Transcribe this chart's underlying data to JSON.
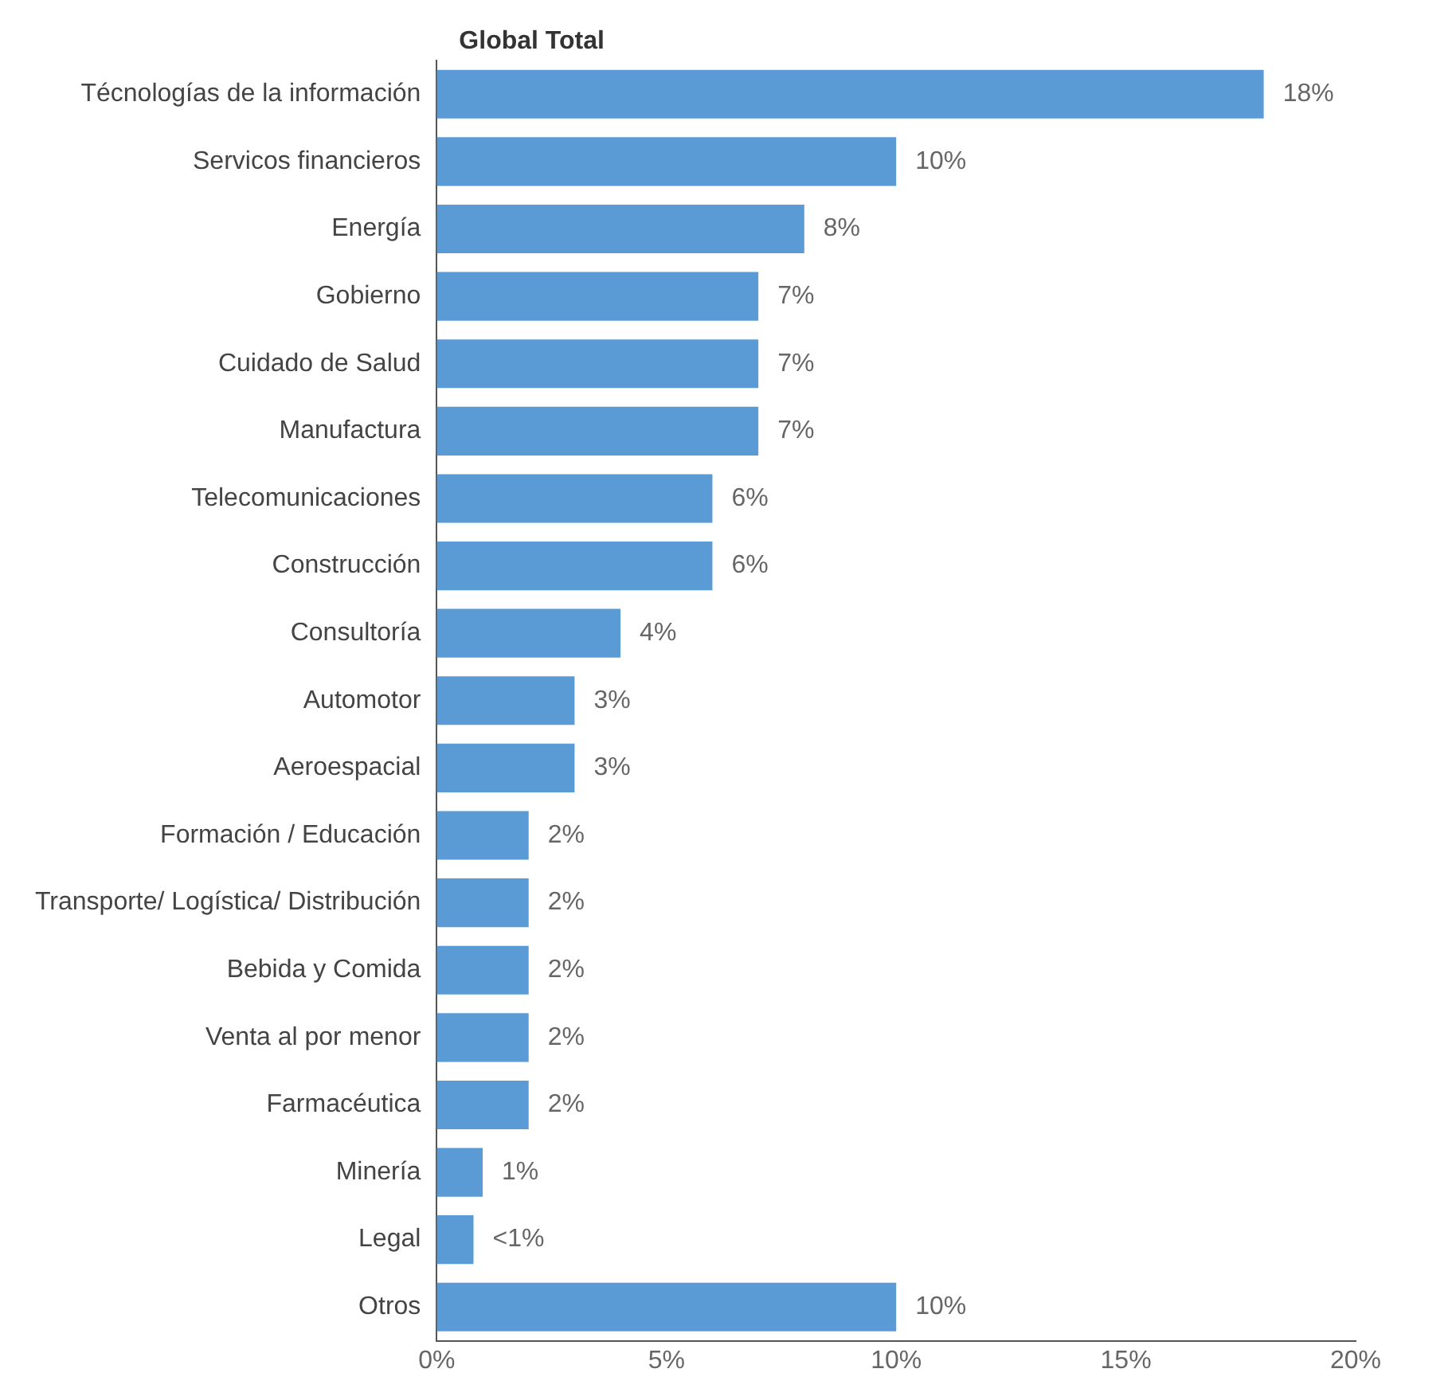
{
  "chart_data": {
    "type": "bar",
    "orientation": "horizontal",
    "title": "Global Total",
    "categories": [
      "Técnologías de la información",
      "Servicos financieros",
      "Energía",
      "Gobierno",
      "Cuidado de Salud",
      "Manufactura",
      "Telecomunicaciones",
      "Construcción",
      "Consultoría",
      "Automotor",
      "Aeroespacial",
      "Formación / Educación",
      "Transporte/ Logística/ Distribución",
      "Bebida y Comida",
      "Venta al por menor",
      "Farmacéutica",
      "Minería",
      "Legal",
      "Otros"
    ],
    "values": [
      18,
      10,
      8,
      7,
      7,
      7,
      6,
      6,
      4,
      3,
      3,
      2,
      2,
      2,
      2,
      2,
      1,
      0.8,
      10
    ],
    "value_labels": [
      "18%",
      "10%",
      "8%",
      "7%",
      "7%",
      "7%",
      "6%",
      "6%",
      "4%",
      "3%",
      "3%",
      "2%",
      "2%",
      "2%",
      "2%",
      "2%",
      "1%",
      "<1%",
      "10%"
    ],
    "color": "#5b9bd5",
    "xlim": [
      0,
      20
    ],
    "xticks": [
      {
        "value": 0,
        "label": "0%"
      },
      {
        "value": 5,
        "label": "5%"
      },
      {
        "value": 10,
        "label": "10%"
      },
      {
        "value": 15,
        "label": "15%"
      },
      {
        "value": 20,
        "label": "20%"
      }
    ],
    "grid": false,
    "legend": false
  }
}
